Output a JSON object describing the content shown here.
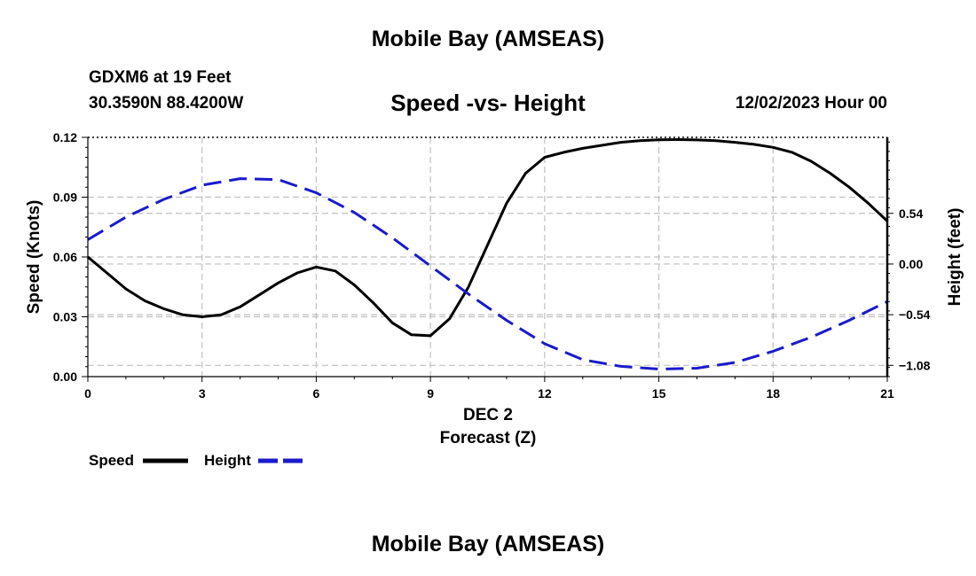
{
  "header": {
    "main_title": "Mobile Bay (AMSEAS)",
    "station": "GDXM6 at 19 Feet",
    "coords": "30.3590N  88.4200W",
    "subtitle": "Speed -vs- Height",
    "datetime": "12/02/2023 Hour 00"
  },
  "footer": {
    "title": "Mobile Bay (AMSEAS)"
  },
  "colors": {
    "speed": "#000000",
    "height": "#1a1acc",
    "grid": "#c0c0c0"
  },
  "chart_data": {
    "type": "line",
    "title": "Speed -vs- Height",
    "xlabel_date": "DEC 2",
    "xlabel": "Forecast (Z)",
    "ylabel": "Speed (Knots)",
    "y2label": "Height (feet)",
    "xlim": [
      0,
      21
    ],
    "ylim": [
      0,
      0.12
    ],
    "y2lim": [
      -1.2,
      1.35
    ],
    "x_ticks": [
      0,
      3,
      6,
      9,
      12,
      15,
      18,
      21
    ],
    "x_tick_labels": [
      "0",
      "3",
      "6",
      "9",
      "12",
      "15",
      "18",
      "21"
    ],
    "y_ticks": [
      0,
      0.03,
      0.06,
      0.09,
      0.12
    ],
    "y_tick_labels": [
      "0.00",
      "0.03",
      "0.06",
      "0.09",
      "0.12"
    ],
    "y2_ticks": [
      -1.08,
      -0.54,
      0.0,
      0.54
    ],
    "y2_tick_labels": [
      "−1.08",
      "−0.54",
      "0.00",
      "0.54"
    ],
    "series": [
      {
        "name": "Speed",
        "axis": "left",
        "style": "solid",
        "x": [
          0,
          0.5,
          1,
          1.5,
          2,
          2.5,
          3,
          3.5,
          4,
          4.5,
          5,
          5.5,
          6,
          6.5,
          7,
          7.5,
          8,
          8.5,
          9,
          9.5,
          10,
          10.5,
          11,
          11.5,
          12,
          12.5,
          13,
          13.5,
          14,
          14.5,
          15,
          15.5,
          16,
          16.5,
          17,
          17.5,
          18,
          18.5,
          19,
          19.5,
          20,
          20.5,
          21
        ],
        "values": [
          0.06,
          0.052,
          0.044,
          0.038,
          0.034,
          0.031,
          0.03,
          0.031,
          0.035,
          0.041,
          0.047,
          0.052,
          0.055,
          0.053,
          0.046,
          0.037,
          0.027,
          0.021,
          0.0205,
          0.029,
          0.045,
          0.066,
          0.087,
          0.102,
          0.11,
          0.1125,
          0.1145,
          0.116,
          0.1175,
          0.1183,
          0.1188,
          0.1189,
          0.1187,
          0.1183,
          0.1175,
          0.1165,
          0.115,
          0.1125,
          0.108,
          0.102,
          0.095,
          0.087,
          0.078
        ]
      },
      {
        "name": "Height",
        "axis": "right",
        "style": "dashed",
        "x": [
          0,
          1,
          2,
          3,
          4,
          5,
          6,
          7,
          8,
          9,
          10,
          11,
          12,
          13,
          14,
          15,
          16,
          17,
          18,
          19,
          20,
          21
        ],
        "values": [
          0.26,
          0.5,
          0.69,
          0.84,
          0.91,
          0.9,
          0.76,
          0.55,
          0.28,
          -0.02,
          -0.32,
          -0.6,
          -0.85,
          -1.02,
          -1.09,
          -1.12,
          -1.11,
          -1.05,
          -0.93,
          -0.78,
          -0.6,
          -0.4
        ]
      }
    ],
    "legend": [
      {
        "label": "Speed",
        "style": "solid"
      },
      {
        "label": "Height",
        "style": "dashed"
      }
    ],
    "grid": true,
    "legend_position": "bottom-left"
  }
}
